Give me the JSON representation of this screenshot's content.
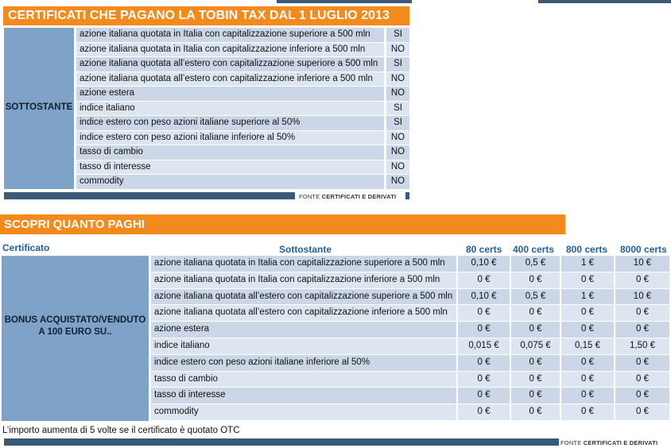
{
  "table1": {
    "title": "CERTIFICATI CHE PAGANO LA TOBIN TAX DAL 1 LUGLIO 2013",
    "group_label": "SOTTOSTANTE",
    "rows": [
      {
        "label": "azione italiana quotata in Italia con capitalizzazione superiore a 500 mln",
        "value": "SI"
      },
      {
        "label": "azione italiana quotata in Italia con capitalizzazione inferiore a 500 mln",
        "value": "NO"
      },
      {
        "label": "azione italiana quotata all’estero con capitalizzazione superiore a 500 mln",
        "value": "SI"
      },
      {
        "label": "azione italiana quotata all’estero con capitalizzazione inferiore a 500 mln",
        "value": "NO"
      },
      {
        "label": "azione estera",
        "value": "NO"
      },
      {
        "label": "indice italiano",
        "value": "SI"
      },
      {
        "label": "indice estero con peso azioni italiane superiore al 50%",
        "value": "SI"
      },
      {
        "label": "indice estero con peso azioni italiane inferiore al 50%",
        "value": "NO"
      },
      {
        "label": "tasso di cambio",
        "value": "NO"
      },
      {
        "label": "tasso di interesse",
        "value": "NO"
      },
      {
        "label": "commodity",
        "value": "NO"
      }
    ],
    "source_prefix": "FONTE ",
    "source_name": "CERTIFICATI E DERIVATI"
  },
  "table2": {
    "title": "SCOPRI QUANTO PAGHI",
    "headers": {
      "certificato": "Certificato",
      "sottostante": "Sottostante",
      "c80": "80 certs",
      "c400": "400 certs",
      "c800": "800 certs",
      "c8000": "8000 certs"
    },
    "group_label": "BONUS ACQUISTATO/VENDUTO A 100 EURO SU..",
    "rows": [
      {
        "label": "azione italiana quotata in Italia con capitalizzazione superiore a 500 mln",
        "v": [
          "0,10 €",
          "0,5 €",
          "1 €",
          "10 €"
        ]
      },
      {
        "label": "azione italiana quotata in Italia con capitalizzazione inferiore a 500 mln",
        "v": [
          "0 €",
          "0 €",
          "0 €",
          "0 €"
        ]
      },
      {
        "label": "azione italiana quotata all’estero con capitalizzazione superiore a 500 mln",
        "v": [
          "0,10 €",
          "0,5 €",
          "1 €",
          "10 €"
        ]
      },
      {
        "label": "azione italiana quotata all’estero con capitalizzazione inferiore a 500 mln",
        "v": [
          "0 €",
          "0 €",
          "0 €",
          "0 €"
        ]
      },
      {
        "label": "azione estera",
        "v": [
          "0 €",
          "0 €",
          "0 €",
          "0 €"
        ]
      },
      {
        "label": "indice italiano",
        "v": [
          "0,015 €",
          "0,075 €",
          "0,15 €",
          "1,50 €"
        ]
      },
      {
        "label": "indice estero con peso azioni italiane inferiore al 50%",
        "v": [
          "0 €",
          "0 €",
          "0 €",
          "0 €"
        ]
      },
      {
        "label": "tasso di cambio",
        "v": [
          "0 €",
          "0 €",
          "0 €",
          "0 €"
        ]
      },
      {
        "label": "tasso di interesse",
        "v": [
          "0 €",
          "0 €",
          "0 €",
          "0 €"
        ]
      },
      {
        "label": "commodity",
        "v": [
          "0 €",
          "0 €",
          "0 €",
          "0 €"
        ]
      }
    ],
    "note": "L’importo aumenta di 5 volte se il certificato è quotato OTC",
    "source_prefix": "FONTE ",
    "source_name": "CERTIFICATI E DERIVATI"
  },
  "colors": {
    "orange": "#f28a1e",
    "navy": "#3a5a78",
    "blue_header": "#1f5f9e",
    "left_cell": "#7fa2c8",
    "row_a": "#cbd7e6",
    "row_b": "#dde6f0"
  }
}
